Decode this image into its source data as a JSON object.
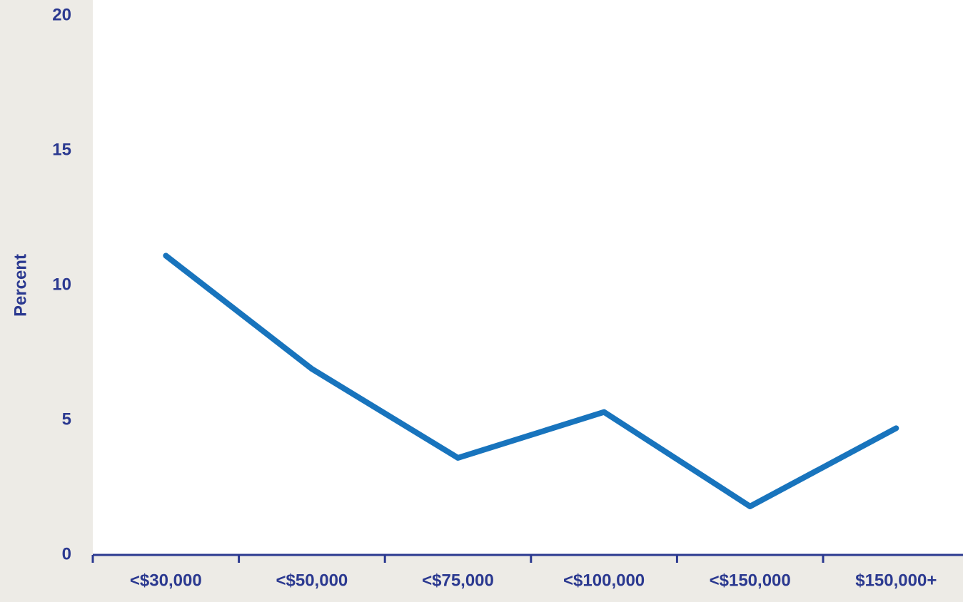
{
  "chart_data": {
    "type": "line",
    "y_label": "Percent",
    "categories": [
      "<$30,000",
      "<$50,000",
      "<$75,000",
      "<$100,000",
      "<$150,000",
      "$150,000+"
    ],
    "series": [
      {
        "name": null,
        "color": "#1874bd",
        "values": [
          11.1,
          6.9,
          3.6,
          5.3,
          1.8,
          4.7
        ]
      }
    ],
    "ylim": [
      0,
      20
    ],
    "yticks": [
      0,
      5,
      10,
      15,
      20
    ],
    "grid": false
  }
}
